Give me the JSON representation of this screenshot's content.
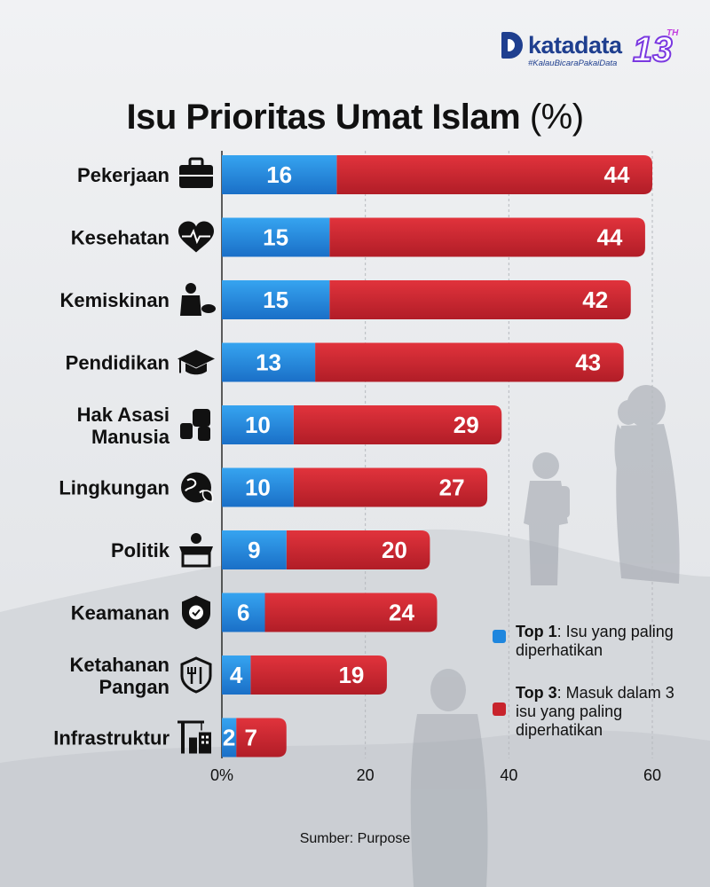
{
  "brand": {
    "name": "katadata",
    "anniversary": "13",
    "anniversary_suffix": "TH",
    "hashtag": "#KalauBicaraPakaiData"
  },
  "chart_data": {
    "type": "bar",
    "orientation": "horizontal",
    "stacked": true,
    "title": "Isu Prioritas Umat Islam",
    "title_unit": "(%)",
    "categories": [
      "Pekerjaan",
      "Kesehatan",
      "Kemiskinan",
      "Pendidikan",
      "Hak Asasi Manusia",
      "Lingkungan",
      "Politik",
      "Keamanan",
      "Ketahanan Pangan",
      "Infrastruktur"
    ],
    "category_icons": [
      "briefcase-icon",
      "heart-pulse-icon",
      "poverty-icon",
      "graduation-cap-icon",
      "raised-fist-icon",
      "globe-leaf-icon",
      "podium-icon",
      "shield-check-icon",
      "food-shield-icon",
      "construction-crane-icon"
    ],
    "series": [
      {
        "name": "Top 1",
        "color": "#1e86de",
        "values": [
          16,
          15,
          15,
          13,
          10,
          10,
          9,
          6,
          4,
          2
        ]
      },
      {
        "name": "Top 3",
        "color": "#c8232c",
        "values": [
          44,
          44,
          42,
          43,
          29,
          27,
          20,
          24,
          19,
          7
        ]
      }
    ],
    "xlim": [
      0,
      60
    ],
    "xticks": [
      "0%",
      "20",
      "40",
      "60"
    ],
    "xtick_values": [
      0,
      20,
      40,
      60
    ],
    "grid": true
  },
  "legend": {
    "items": [
      {
        "bold": "Top 1",
        "rest": ": Isu yang paling diperhatikan",
        "color": "#1e86de"
      },
      {
        "bold": "Top 3",
        "rest": ": Masuk dalam 3 isu yang paling diperhatikan",
        "color": "#c8232c"
      }
    ]
  },
  "source": "Sumber: Purpose"
}
